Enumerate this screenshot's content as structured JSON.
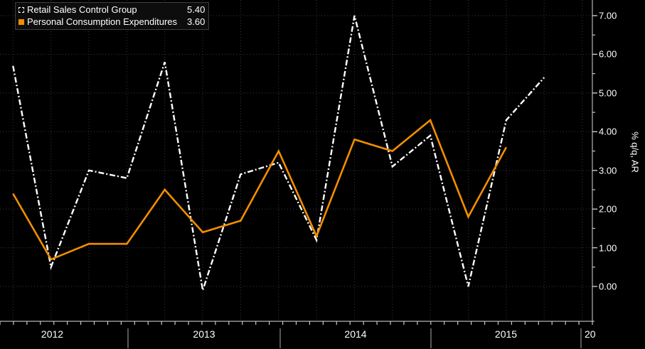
{
  "legend": {
    "items": [
      {
        "label": "Retail Sales Control Group",
        "value": "5.40",
        "marker": "dashed-square",
        "color": "#ffffff"
      },
      {
        "label": "Personal Consumption Expenditures",
        "value": "3.60",
        "marker": "filled-square",
        "color": "#f28e00"
      }
    ]
  },
  "axes": {
    "y_ticks": [
      "7.00",
      "6.00",
      "5.00",
      "4.00",
      "3.00",
      "2.00",
      "1.00",
      "0.00"
    ],
    "y_title": "% q/q, AR",
    "x_year_labels": [
      "2012",
      "2013",
      "2014",
      "2015",
      "20"
    ]
  },
  "colors": {
    "background": "#000000",
    "grid": "#3a3a3a",
    "axis": "#b4b4b4",
    "tick": "#c8c8c8",
    "year_divider": "#909090",
    "text": "#ffffff",
    "series_white": "#ffffff",
    "series_orange": "#f28e00"
  },
  "chart_data": {
    "type": "line",
    "title": "",
    "ylabel": "% q/q, AR",
    "xlabel": "",
    "grid": "dotted",
    "legend_position": "top-left",
    "y_axis_side": "right",
    "ylim": [
      -0.9,
      7.4
    ],
    "y_tick_step": 1.0,
    "x_quarters": [
      "2012 Q1",
      "2012 Q2",
      "2012 Q3",
      "2012 Q4",
      "2013 Q1",
      "2013 Q2",
      "2013 Q3",
      "2013 Q4",
      "2014 Q1",
      "2014 Q2",
      "2014 Q3",
      "2014 Q4",
      "2015 Q1",
      "2015 Q2",
      "2015 Q3"
    ],
    "series": [
      {
        "name": "Retail Sales Control Group",
        "color": "#ffffff",
        "line_style": "dash-dot",
        "last_value": 5.4,
        "values": [
          5.7,
          0.5,
          3.0,
          2.8,
          5.8,
          -0.1,
          2.9,
          3.2,
          1.2,
          7.0,
          3.1,
          3.9,
          0.0,
          4.3,
          5.4
        ]
      },
      {
        "name": "Personal Consumption Expenditures",
        "color": "#f28e00",
        "line_style": "solid",
        "last_value": 3.6,
        "values": [
          2.4,
          0.7,
          1.1,
          1.1,
          2.5,
          1.4,
          1.7,
          3.5,
          1.3,
          3.8,
          3.5,
          4.3,
          1.8,
          3.6
        ]
      }
    ]
  }
}
